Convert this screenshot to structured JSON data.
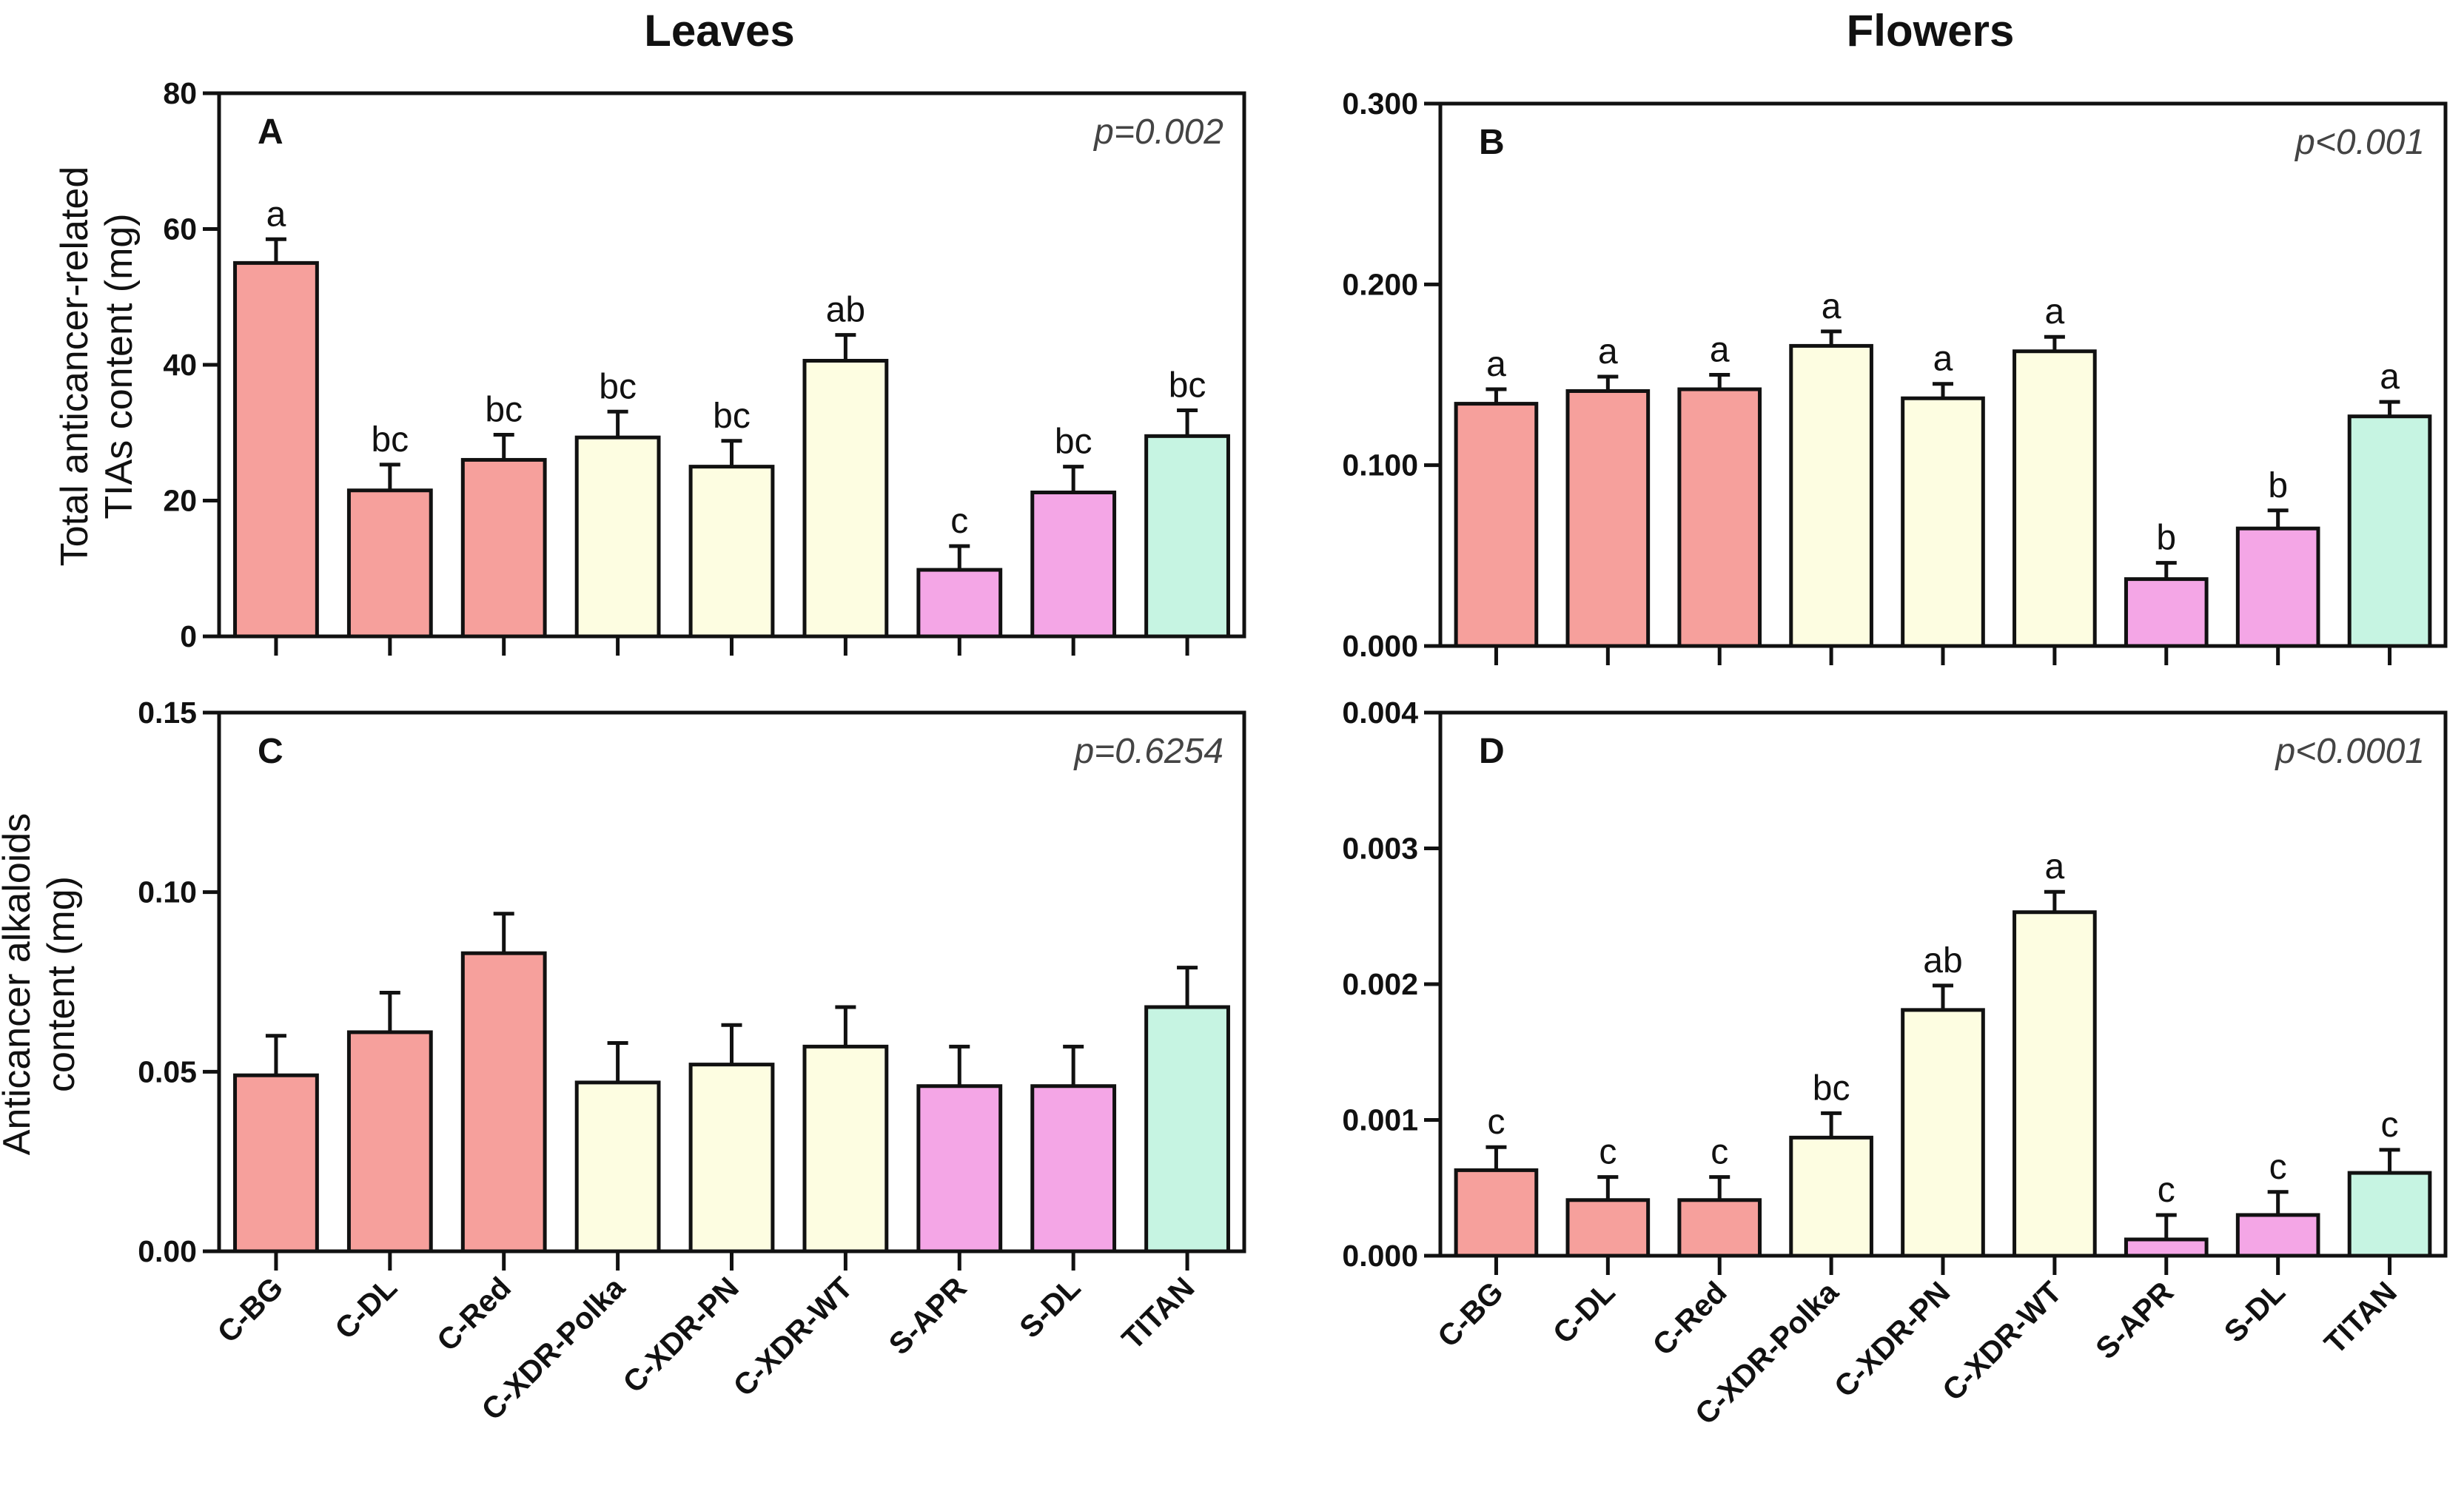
{
  "column_titles": [
    "Leaves",
    "Flowers"
  ],
  "categories": [
    "C-BG",
    "C-DL",
    "C-Red",
    "C-XDR-Polka",
    "C-XDR-PN",
    "C-XDR-WT",
    "S-APR",
    "S-DL",
    "TITAN"
  ],
  "group_colors": {
    "C-BG": "#f6a09c",
    "C-DL": "#f6a09c",
    "C-Red": "#f6a09c",
    "C-XDR-Polka": "#fdfde1",
    "C-XDR-PN": "#fdfde1",
    "C-XDR-WT": "#fdfde1",
    "S-APR": "#f4a6e6",
    "S-DL": "#f4a6e6",
    "TITAN": "#c6f4e2"
  },
  "chart_data": [
    {
      "type": "bar",
      "panel": "A",
      "column": "Leaves",
      "pvalue": "p=0.002",
      "ylabel_lines": [
        "Total anticancer-related",
        "TIAs content (mg)"
      ],
      "categories": [
        "C-BG",
        "C-DL",
        "C-Red",
        "C-XDR-Polka",
        "C-XDR-PN",
        "C-XDR-WT",
        "S-APR",
        "S-DL",
        "TITAN"
      ],
      "values": [
        55,
        21.5,
        26,
        29.3,
        25,
        40.6,
        9.8,
        21.2,
        29.5
      ],
      "errors": [
        3.5,
        3.8,
        3.7,
        3.8,
        3.8,
        3.8,
        3.5,
        3.8,
        3.8
      ],
      "letters": [
        "a",
        "bc",
        "bc",
        "bc",
        "bc",
        "ab",
        "c",
        "bc",
        "bc"
      ],
      "ylim": [
        0,
        80
      ],
      "yticks": [
        0,
        20,
        40,
        60,
        80
      ],
      "ytick_labels": [
        "0",
        "20",
        "40",
        "60",
        "80"
      ]
    },
    {
      "type": "bar",
      "panel": "B",
      "column": "Flowers",
      "pvalue": "p<0.001",
      "ylabel_lines": [],
      "categories": [
        "C-BG",
        "C-DL",
        "C-Red",
        "C-XDR-Polka",
        "C-XDR-PN",
        "C-XDR-WT",
        "S-APR",
        "S-DL",
        "TITAN"
      ],
      "values": [
        0.134,
        0.141,
        0.142,
        0.166,
        0.137,
        0.163,
        0.037,
        0.065,
        0.127
      ],
      "errors": [
        0.008,
        0.008,
        0.008,
        0.008,
        0.008,
        0.008,
        0.009,
        0.01,
        0.008
      ],
      "letters": [
        "a",
        "a",
        "a",
        "a",
        "a",
        "a",
        "b",
        "b",
        "a"
      ],
      "ylim": [
        0,
        0.3
      ],
      "yticks": [
        0,
        0.1,
        0.2,
        0.3
      ],
      "ytick_labels": [
        "0.000",
        "0.100",
        "0.200",
        "0.300"
      ]
    },
    {
      "type": "bar",
      "panel": "C",
      "column": "Leaves",
      "pvalue": "p=0.6254",
      "ylabel_lines": [
        "Anticancer alkaloids",
        "content (mg)"
      ],
      "categories": [
        "C-BG",
        "C-DL",
        "C-Red",
        "C-XDR-Polka",
        "C-XDR-PN",
        "C-XDR-WT",
        "S-APR",
        "S-DL",
        "TITAN"
      ],
      "values": [
        0.049,
        0.061,
        0.083,
        0.047,
        0.052,
        0.057,
        0.046,
        0.046,
        0.068
      ],
      "errors": [
        0.011,
        0.011,
        0.011,
        0.011,
        0.011,
        0.011,
        0.011,
        0.011,
        0.011
      ],
      "letters": [
        "",
        "",
        "",
        "",
        "",
        "",
        "",
        "",
        ""
      ],
      "ylim": [
        0,
        0.15
      ],
      "yticks": [
        0,
        0.05,
        0.1,
        0.15
      ],
      "ytick_labels": [
        "0.00",
        "0.05",
        "0.10",
        "0.15"
      ]
    },
    {
      "type": "bar",
      "panel": "D",
      "column": "Flowers",
      "pvalue": "p<0.0001",
      "ylabel_lines": [],
      "categories": [
        "C-BG",
        "C-DL",
        "C-Red",
        "C-XDR-Polka",
        "C-XDR-PN",
        "C-XDR-WT",
        "S-APR",
        "S-DL",
        "TITAN"
      ],
      "values": [
        0.00063,
        0.00041,
        0.00041,
        0.00087,
        0.00181,
        0.00253,
        0.00012,
        0.0003,
        0.00061
      ],
      "errors": [
        0.00017,
        0.00017,
        0.00017,
        0.00018,
        0.00018,
        0.00015,
        0.00018,
        0.00017,
        0.00017
      ],
      "letters": [
        "c",
        "c",
        "c",
        "bc",
        "ab",
        "a",
        "c",
        "c",
        "c"
      ],
      "ylim": [
        0,
        0.004
      ],
      "yticks": [
        0,
        0.001,
        0.002,
        0.003,
        0.004
      ],
      "ytick_labels": [
        "0.000",
        "0.001",
        "0.002",
        "0.003",
        "0.004"
      ]
    }
  ]
}
